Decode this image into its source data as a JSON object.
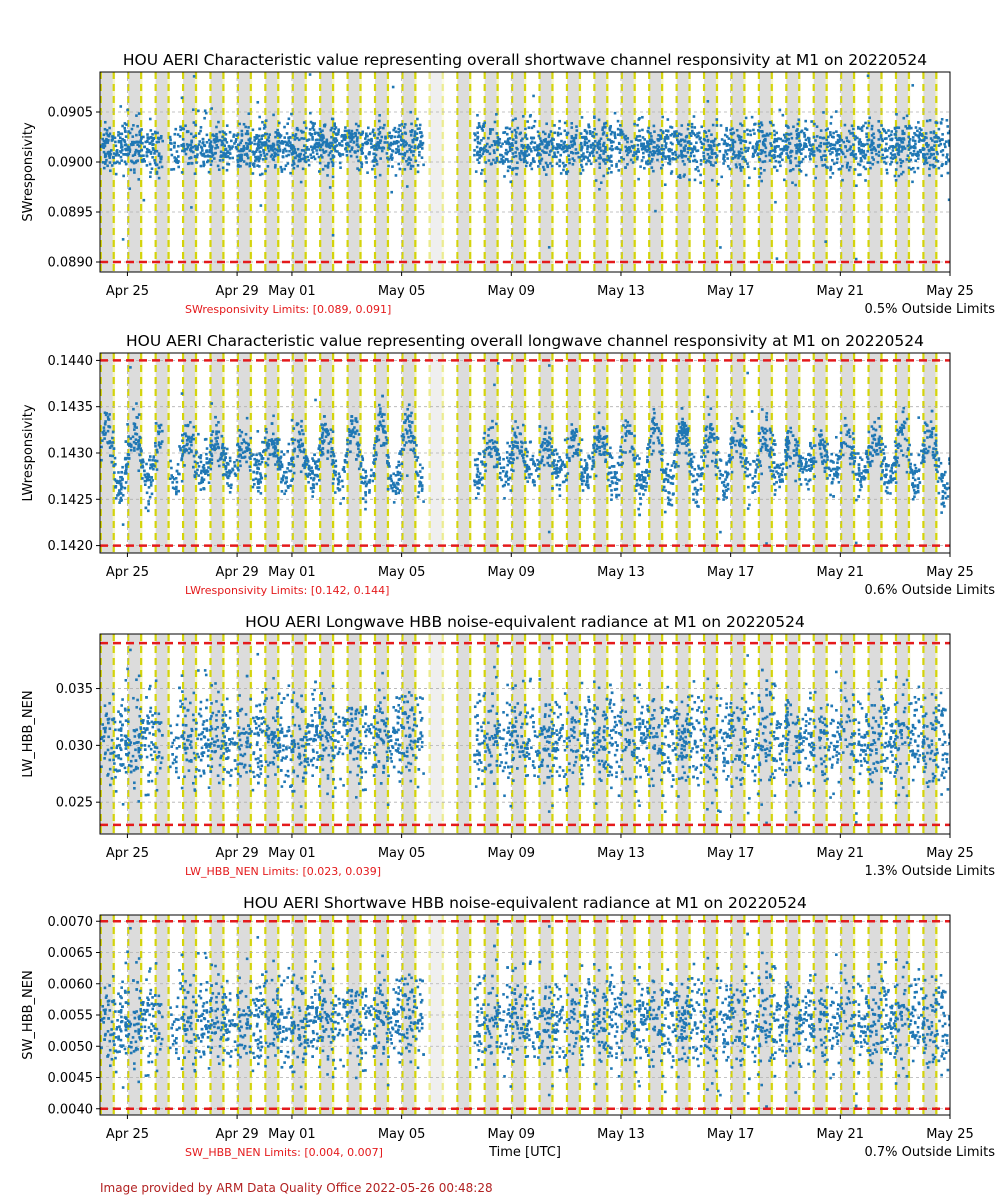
{
  "figure": {
    "footer": "Image provided by ARM Data Quality Office 2022-05-26 00:48:28",
    "xlabel": "Time [UTC]",
    "xticks": [
      "Apr 25",
      "Apr 29",
      "May 01",
      "May 05",
      "May 09",
      "May 13",
      "May 17",
      "May 21",
      "May 25"
    ]
  },
  "colors": {
    "data": "#1f77b4",
    "limit": "#e41a1c",
    "night": "#dcdcdc",
    "dusk_band": "#f5f5c8",
    "transition": "#d4d40a",
    "limit_text": "#e41a1c"
  },
  "chart_data": [
    {
      "type": "scatter",
      "title": "HOU AERI Characteristic value representing overall shortwave channel responsivity at M1 on 20220524",
      "ylabel": "SWresponsivity",
      "ylim": [
        0.0889,
        0.0909
      ],
      "yticks": [
        "0.0890",
        "0.0895",
        "0.0900",
        "0.0905"
      ],
      "ytick_values": [
        0.089,
        0.0895,
        0.09,
        0.0905
      ],
      "limits": [
        0.089,
        0.091
      ],
      "limits_label": "SWresponsivity Limits: [0.089, 0.091]",
      "outside_label": "0.5% Outside Limits",
      "series": [
        {
          "center": 0.09015,
          "spread": 0.00025,
          "x_range": [
            "2022-04-24",
            "2022-05-25"
          ],
          "gap": [
            "2022-05-06",
            "2022-05-07"
          ]
        }
      ],
      "grid": true
    },
    {
      "type": "scatter",
      "title": "HOU AERI Characteristic value representing overall longwave channel responsivity at M1 on 20220524",
      "ylabel": "LWresponsivity",
      "ylim": [
        0.14192,
        0.14408
      ],
      "yticks": [
        "0.1420",
        "0.1425",
        "0.1430",
        "0.1435",
        "0.1440"
      ],
      "ytick_values": [
        0.142,
        0.1425,
        0.143,
        0.1435,
        0.144
      ],
      "limits": [
        0.142,
        0.144
      ],
      "limits_label": "LWresponsivity Limits: [0.142, 0.144]",
      "outside_label": "0.6% Outside Limits",
      "series": [
        {
          "center": 0.14295,
          "spread": 0.0003,
          "x_range": [
            "2022-04-24",
            "2022-05-25"
          ],
          "gap": [
            "2022-05-06",
            "2022-05-07"
          ]
        }
      ],
      "grid": true
    },
    {
      "type": "scatter",
      "title": "HOU AERI Longwave HBB noise-equivalent radiance at M1 on 20220524",
      "ylabel": "LW_HBB_NEN",
      "ylim": [
        0.0222,
        0.0398
      ],
      "yticks": [
        "0.025",
        "0.030",
        "0.035"
      ],
      "ytick_values": [
        0.025,
        0.03,
        0.035
      ],
      "limits": [
        0.023,
        0.039
      ],
      "limits_label": "LW_HBB_NEN Limits: [0.023, 0.039]",
      "outside_label": "1.3% Outside Limits",
      "series": [
        {
          "center": 0.0305,
          "spread": 0.0028,
          "x_range": [
            "2022-04-24",
            "2022-05-25"
          ],
          "gap": [
            "2022-05-06",
            "2022-05-07"
          ]
        }
      ],
      "grid": true
    },
    {
      "type": "scatter",
      "title": "HOU AERI Shortwave HBB noise-equivalent radiance at M1 on 20220524",
      "ylabel": "SW_HBB_NEN",
      "ylim": [
        0.0039,
        0.0071
      ],
      "yticks": [
        "0.0040",
        "0.0045",
        "0.0050",
        "0.0055",
        "0.0060",
        "0.0065",
        "0.0070"
      ],
      "ytick_values": [
        0.004,
        0.0045,
        0.005,
        0.0055,
        0.006,
        0.0065,
        0.007
      ],
      "limits": [
        0.004,
        0.007
      ],
      "limits_label": "SW_HBB_NEN Limits: [0.004, 0.007]",
      "outside_label": "0.7% Outside Limits",
      "series": [
        {
          "center": 0.0054,
          "spread": 0.0005,
          "x_range": [
            "2022-04-24",
            "2022-05-25"
          ],
          "gap": [
            "2022-05-06",
            "2022-05-07"
          ]
        }
      ],
      "grid": true
    }
  ]
}
